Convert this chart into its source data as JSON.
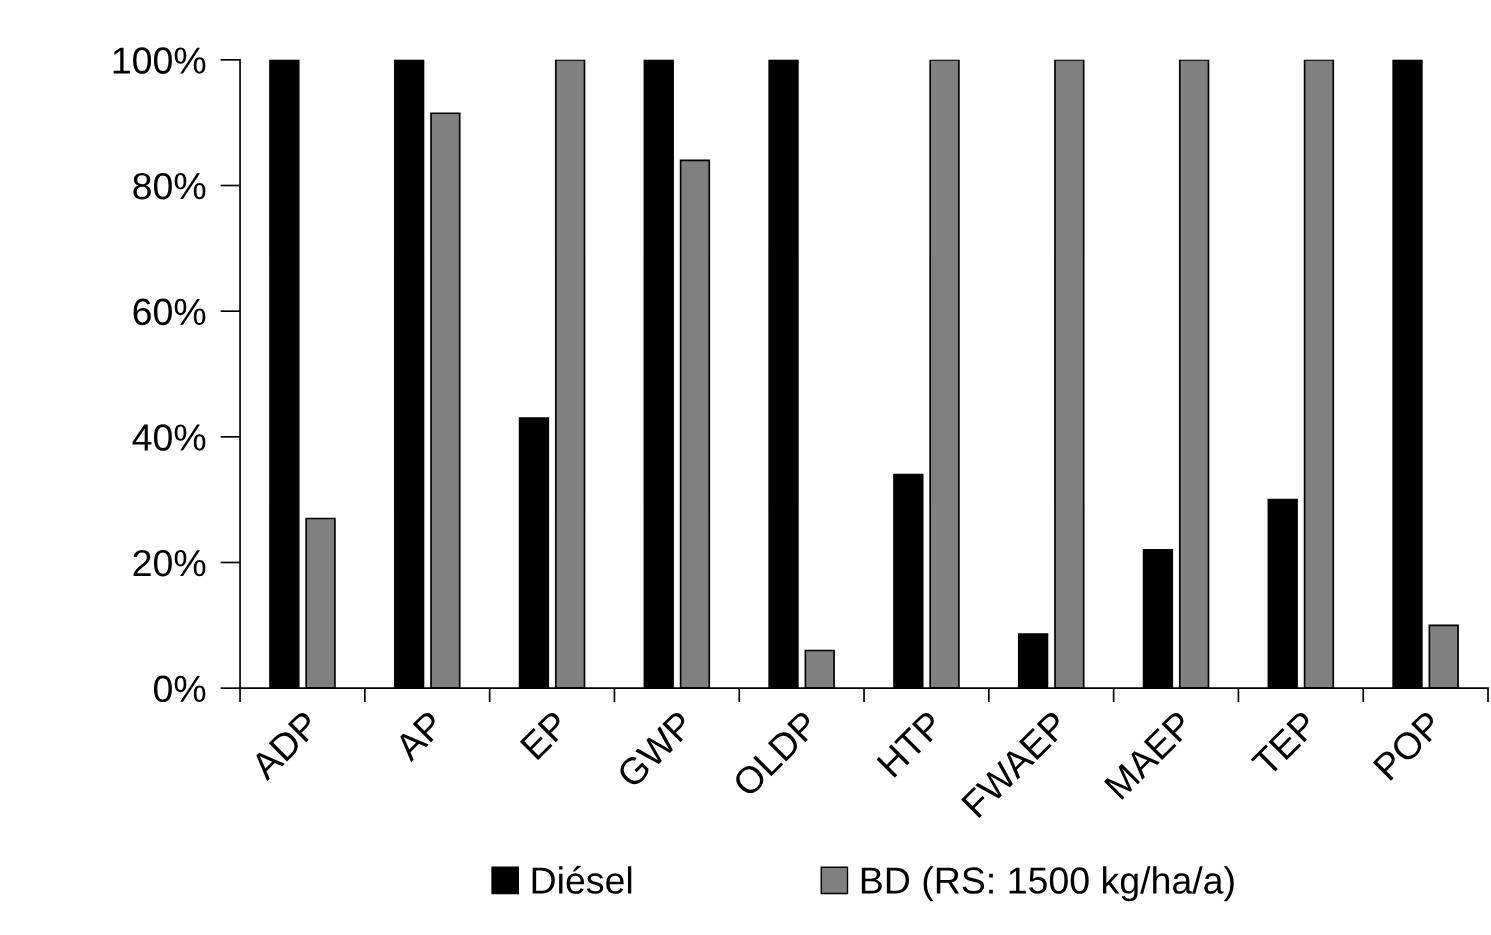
{
  "chart_data": {
    "type": "bar",
    "categories": [
      "ADP",
      "AP",
      "EP",
      "GWP",
      "OLDP",
      "HTP",
      "FWAEP",
      "MAEP",
      "TEP",
      "POP"
    ],
    "series": [
      {
        "name": "Diésel",
        "color": "#000000",
        "values": [
          100,
          100,
          43,
          100,
          100,
          34,
          8.6,
          22,
          30,
          100
        ]
      },
      {
        "name": "BD (RS: 1500 kg/ha/a)",
        "color": "#808080",
        "values": [
          27,
          91.5,
          100,
          84,
          6,
          100,
          100,
          100,
          100,
          10
        ]
      }
    ],
    "ylim": [
      0,
      100
    ],
    "yticks": [
      {
        "value": 0,
        "label": "0%"
      },
      {
        "value": 20,
        "label": "20%"
      },
      {
        "value": 40,
        "label": "40%"
      },
      {
        "value": 60,
        "label": "60%"
      },
      {
        "value": 80,
        "label": "80%"
      },
      {
        "value": 100,
        "label": "100%"
      }
    ],
    "grid": false,
    "legend": "bottom"
  }
}
